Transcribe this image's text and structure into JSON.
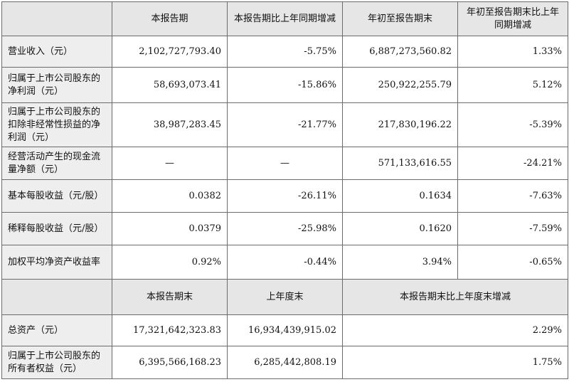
{
  "header": {
    "col1": "本报告期",
    "col2": "本报告期比上年同期增减",
    "col3": "年初至报告期末",
    "col4": "年初至报告期末比上年同期增减"
  },
  "rows": [
    {
      "label": "营业收入（元）",
      "v1": "2,102,727,793.40",
      "v2": "-5.75%",
      "v3": "6,887,273,560.82",
      "v4": "1.33%"
    },
    {
      "label": "归属于上市公司股东的净利润（元）",
      "v1": "58,693,073.41",
      "v2": "-15.86%",
      "v3": "250,922,255.79",
      "v4": "5.12%"
    },
    {
      "label": "归属于上市公司股东的扣除非经常性损益的净利润（元）",
      "v1": "38,987,283.45",
      "v2": "-21.77%",
      "v3": "217,830,196.22",
      "v4": "-5.39%"
    },
    {
      "label": "经营活动产生的现金流量净额（元）",
      "v1": "—",
      "v2": "—",
      "v3": "571,133,616.55",
      "v4": "-24.21%"
    },
    {
      "label": "基本每股收益（元/股）",
      "v1": "0.0382",
      "v2": "-26.11%",
      "v3": "0.1634",
      "v4": "-7.63%"
    },
    {
      "label": "稀释每股收益（元/股）",
      "v1": "0.0379",
      "v2": "-25.98%",
      "v3": "0.1620",
      "v4": "-7.59%"
    },
    {
      "label": "加权平均净资产收益率",
      "v1": "0.92%",
      "v2": "-0.44%",
      "v3": "3.94%",
      "v4": "-0.65%"
    }
  ],
  "header2": {
    "col1": "本报告期末",
    "col2": "上年度末",
    "col3": "本报告期末比上年度末增减"
  },
  "rows2": [
    {
      "label": "总资产（元）",
      "v1": "17,321,642,323.83",
      "v2": "16,934,439,915.02",
      "v3": "2.29%"
    },
    {
      "label": "归属于上市公司股东的所有者权益（元）",
      "v1": "6,395,566,168.23",
      "v2": "6,285,442,808.19",
      "v3": "1.75%"
    }
  ]
}
